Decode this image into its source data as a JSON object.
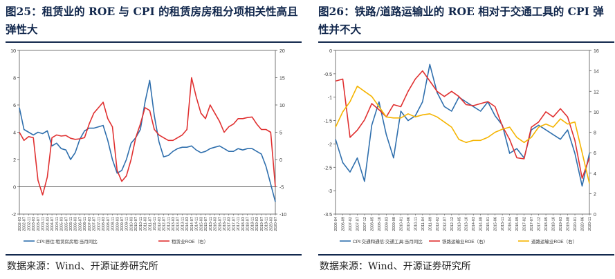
{
  "figures": [
    {
      "title": "图25：租赁业的 ROE 与 CPI 的租赁房房租分项相关性高且弹性大",
      "source": "数据来源：Wind、开源证券研究所"
    },
    {
      "title": "图26：铁路/道路运输业的 ROE 相对于交通工具的 CPI 弹性并不大",
      "source": "数据来源：Wind、开源证券研究所"
    }
  ],
  "chart_data": [
    {
      "type": "line",
      "x": [
        "2002-03",
        "2002-07",
        "2002-11",
        "2003-03",
        "2003-07",
        "2003-11",
        "2004-03",
        "2004-07",
        "2004-11",
        "2005-03",
        "2005-07",
        "2005-11",
        "2006-03",
        "2006-07",
        "2006-11",
        "2007-03",
        "2007-07",
        "2007-11",
        "2008-03",
        "2008-07",
        "2008-11",
        "2009-03",
        "2009-07",
        "2009-11",
        "2010-03",
        "2010-07",
        "2010-11",
        "2011-03",
        "2011-07",
        "2011-11",
        "2012-03",
        "2012-07",
        "2012-11",
        "2013-03",
        "2013-07",
        "2013-11",
        "2014-03",
        "2014-07",
        "2014-11",
        "2015-03",
        "2015-07",
        "2015-11",
        "2016-03",
        "2016-07",
        "2016-11",
        "2017-03",
        "2017-07",
        "2017-11",
        "2018-03",
        "2018-07",
        "2018-11",
        "2019-03",
        "2019-07",
        "2019-11",
        "2020-03",
        "2020-07"
      ],
      "ylim_left": [
        -2,
        10
      ],
      "ylim_right": [
        -10,
        20
      ],
      "left_ticks": [
        -2,
        0,
        2,
        4,
        6,
        8,
        10
      ],
      "right_ticks": [
        -10,
        -5,
        0,
        5,
        10,
        15,
        20
      ],
      "series": [
        {
          "name": "CPI:居住:租赁房房租:当月同比",
          "axis": "left",
          "color": "#2f6fad",
          "values": [
            5.8,
            4.2,
            4.0,
            3.8,
            4.0,
            3.9,
            4.1,
            3.0,
            3.2,
            2.8,
            2.7,
            2.0,
            2.5,
            3.5,
            4.1,
            4.3,
            4.3,
            4.4,
            4.5,
            3.4,
            2.0,
            1.0,
            1.2,
            2.0,
            3.2,
            3.6,
            4.2,
            6.2,
            7.8,
            5.2,
            3.3,
            2.2,
            2.3,
            2.6,
            2.8,
            2.9,
            2.9,
            3.0,
            2.7,
            2.5,
            2.6,
            2.8,
            2.9,
            3.0,
            2.8,
            2.6,
            2.6,
            2.8,
            2.7,
            2.8,
            2.8,
            2.6,
            2.4,
            1.5,
            0.2,
            -1.1
          ]
        },
        {
          "name": "租赁业ROE（右）",
          "axis": "right",
          "color": "#e03030",
          "values": [
            5.0,
            3.5,
            4.2,
            4.0,
            -3.8,
            -6.5,
            -3.2,
            4.0,
            4.5,
            4.3,
            4.4,
            3.9,
            3.7,
            3.8,
            4.0,
            6.5,
            8.5,
            9.5,
            10.5,
            7.5,
            6.0,
            -2.0,
            -4.0,
            -3.0,
            0.0,
            4.0,
            6.5,
            9.5,
            9.0,
            5.5,
            4.5,
            4.0,
            3.5,
            3.5,
            4.0,
            4.5,
            5.5,
            15.0,
            11.5,
            8.5,
            7.5,
            10.0,
            8.5,
            7.0,
            5.0,
            6.0,
            6.5,
            7.5,
            7.5,
            7.7,
            7.8,
            6.5,
            5.5,
            5.5,
            5.0,
            -5.0
          ]
        }
      ]
    },
    {
      "type": "line",
      "x": [
        "2006-04",
        "2006-09",
        "2007-02",
        "2007-07",
        "2007-12",
        "2008-05",
        "2008-10",
        "2009-03",
        "2009-08",
        "2010-01",
        "2010-06",
        "2010-11",
        "2011-04",
        "2011-09",
        "2012-02",
        "2012-07",
        "2012-12",
        "2013-05",
        "2013-10",
        "2014-03",
        "2014-08",
        "2015-01",
        "2015-06",
        "2015-11",
        "2016-04",
        "2016-09",
        "2017-02",
        "2017-07",
        "2017-12",
        "2018-05",
        "2018-10",
        "2019-03",
        "2019-08",
        "2020-01",
        "2020-06",
        "2020-11"
      ],
      "ylim_left": [
        -3.5,
        0
      ],
      "ylim_right": [
        0,
        16
      ],
      "left_ticks": [
        -3.5,
        -3,
        -2.5,
        -2,
        -1.5,
        -1,
        -0.5,
        0
      ],
      "right_ticks": [
        0,
        2,
        4,
        6,
        8,
        10,
        12,
        14,
        16
      ],
      "series": [
        {
          "name": "CPI:交通和通信:交通工具:当月同比",
          "axis": "left",
          "color": "#2f6fad",
          "values": [
            -1.9,
            -2.4,
            -2.6,
            -2.3,
            -2.8,
            -1.6,
            -1.1,
            -1.8,
            -2.3,
            -1.3,
            -1.5,
            -1.4,
            -1.1,
            -0.3,
            -0.9,
            -1.2,
            -1.3,
            -1.0,
            -1.1,
            -1.2,
            -1.3,
            -1.1,
            -1.4,
            -1.6,
            -2.2,
            -2.1,
            -2.3,
            -1.7,
            -1.6,
            -1.7,
            -1.8,
            -1.9,
            -1.7,
            -2.2,
            -2.9,
            -2.2
          ]
        },
        {
          "name": "铁路运输业ROE（右）",
          "axis": "right",
          "color": "#e03030",
          "values": [
            13.0,
            13.2,
            7.5,
            8.2,
            9.2,
            10.8,
            10.2,
            9.5,
            10.7,
            10.5,
            12.0,
            13.2,
            14.0,
            13.0,
            12.0,
            11.5,
            12.0,
            11.5,
            10.7,
            10.6,
            10.8,
            11.0,
            10.5,
            8.6,
            7.3,
            5.5,
            5.4,
            8.5,
            9.0,
            10.0,
            9.5,
            10.3,
            9.5,
            7.2,
            3.5,
            5.5
          ]
        },
        {
          "name": "道路运输业ROE（右）",
          "axis": "right",
          "color": "#f5b400",
          "values": [
            8.5,
            10.0,
            11.0,
            12.5,
            12.0,
            11.5,
            10.5,
            9.5,
            9.4,
            9.4,
            9.8,
            9.5,
            9.7,
            9.8,
            9.5,
            9.0,
            8.5,
            7.3,
            7.0,
            7.2,
            7.2,
            7.5,
            8.0,
            8.3,
            8.5,
            7.5,
            7.0,
            7.5,
            8.5,
            8.8,
            8.5,
            9.3,
            8.8,
            9.0,
            6.0,
            3.0
          ]
        }
      ]
    }
  ]
}
